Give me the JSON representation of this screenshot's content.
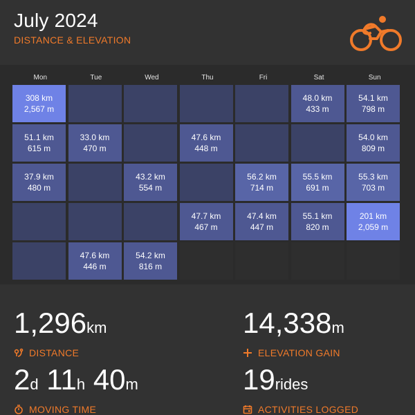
{
  "header": {
    "title": "July 2024",
    "subtitle": "DISTANCE & ELEVATION",
    "accent": "#f07a2a",
    "logo_icon": "cyclist-icon"
  },
  "calendar": {
    "weekdays": [
      "Mon",
      "Tue",
      "Wed",
      "Thu",
      "Fri",
      "Sat",
      "Sun"
    ],
    "days": [
      {
        "dist": "308 km",
        "elev": "2,567 m",
        "level": "high"
      },
      {
        "dist": "",
        "elev": "",
        "level": "none"
      },
      {
        "dist": "",
        "elev": "",
        "level": "none"
      },
      {
        "dist": "",
        "elev": "",
        "level": "none"
      },
      {
        "dist": "",
        "elev": "",
        "level": "none"
      },
      {
        "dist": "48.0 km",
        "elev": "433 m",
        "level": "mid"
      },
      {
        "dist": "54.1 km",
        "elev": "798 m",
        "level": "mid"
      },
      {
        "dist": "51.1 km",
        "elev": "615 m",
        "level": "mid"
      },
      {
        "dist": "33.0 km",
        "elev": "470 m",
        "level": "mid"
      },
      {
        "dist": "",
        "elev": "",
        "level": "none"
      },
      {
        "dist": "47.6 km",
        "elev": "448 m",
        "level": "mid"
      },
      {
        "dist": "",
        "elev": "",
        "level": "none"
      },
      {
        "dist": "",
        "elev": "",
        "level": "none"
      },
      {
        "dist": "54.0 km",
        "elev": "809 m",
        "level": "mid"
      },
      {
        "dist": "37.9 km",
        "elev": "480 m",
        "level": "mid"
      },
      {
        "dist": "",
        "elev": "",
        "level": "none"
      },
      {
        "dist": "43.2 km",
        "elev": "554 m",
        "level": "mid"
      },
      {
        "dist": "",
        "elev": "",
        "level": "none"
      },
      {
        "dist": "56.2 km",
        "elev": "714 m",
        "level": "low"
      },
      {
        "dist": "55.5 km",
        "elev": "691 m",
        "level": "low"
      },
      {
        "dist": "55.3 km",
        "elev": "703 m",
        "level": "low"
      },
      {
        "dist": "",
        "elev": "",
        "level": "none"
      },
      {
        "dist": "",
        "elev": "",
        "level": "none"
      },
      {
        "dist": "",
        "elev": "",
        "level": "none"
      },
      {
        "dist": "47.7 km",
        "elev": "467 m",
        "level": "mid"
      },
      {
        "dist": "47.4 km",
        "elev": "447 m",
        "level": "mid"
      },
      {
        "dist": "55.1 km",
        "elev": "820 m",
        "level": "mid"
      },
      {
        "dist": "201 km",
        "elev": "2,059 m",
        "level": "high"
      },
      {
        "dist": "",
        "elev": "",
        "level": "none"
      },
      {
        "dist": "47.6 km",
        "elev": "446 m",
        "level": "mid"
      },
      {
        "dist": "54.2 km",
        "elev": "816 m",
        "level": "mid"
      },
      {
        "dist": "",
        "elev": "",
        "level": "empty"
      },
      {
        "dist": "",
        "elev": "",
        "level": "empty"
      },
      {
        "dist": "",
        "elev": "",
        "level": "empty"
      },
      {
        "dist": "",
        "elev": "",
        "level": "empty"
      }
    ]
  },
  "stats": {
    "distance": {
      "value": "1,296",
      "unit": "km",
      "label": "DISTANCE",
      "icon": "route-pin-icon"
    },
    "elevation": {
      "value": "14,338",
      "unit": "m",
      "label": "ELEVATION GAIN",
      "icon": "plus-icon"
    },
    "moving_time": {
      "days": "2",
      "days_unit": "d",
      "hours": "11",
      "hours_unit": "h",
      "minutes": "40",
      "minutes_unit": "m",
      "label": "MOVING TIME",
      "icon": "stopwatch-icon"
    },
    "activities": {
      "value": "19",
      "unit": "rides",
      "label": "ACTIVITIES LOGGED",
      "icon": "calendar-icon"
    }
  }
}
